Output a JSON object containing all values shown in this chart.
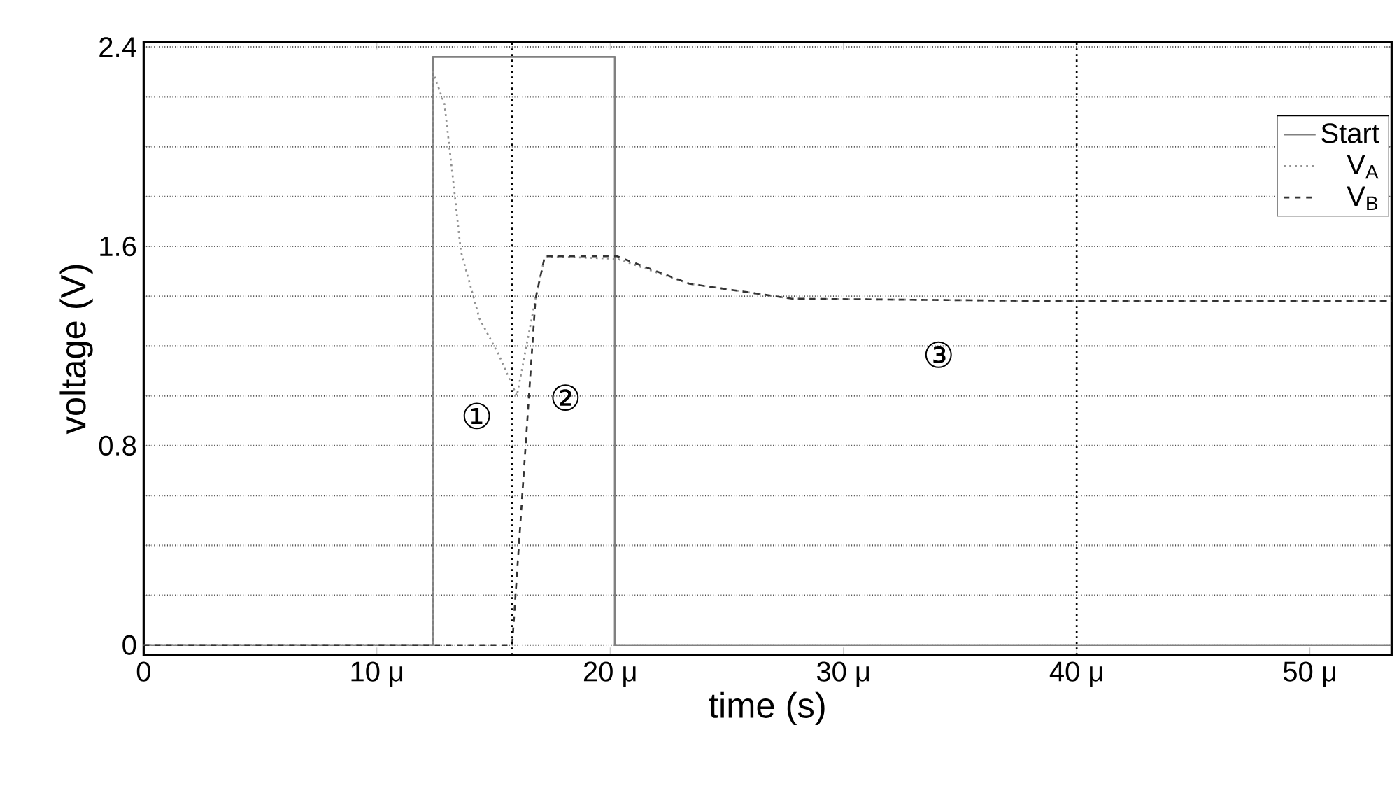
{
  "chart_data": {
    "type": "line",
    "xlabel": "time (s)",
    "ylabel": "voltage (V)",
    "xlim": [
      0,
      53.5
    ],
    "ylim": [
      -0.04,
      2.42
    ],
    "xticks": [
      0,
      {
        "value": 10,
        "label": "10 μ"
      },
      {
        "value": 20,
        "label": "20 μ"
      },
      {
        "value": 30,
        "label": "30 μ"
      },
      {
        "value": 40,
        "label": "40 μ"
      },
      {
        "value": 50,
        "label": "50 μ"
      }
    ],
    "yticks": [
      0,
      {
        "value": 0.2,
        "label": null
      },
      {
        "value": 0.4,
        "label": null
      },
      {
        "value": 0.6,
        "label": null
      },
      0.8,
      {
        "value": 1.0,
        "label": null
      },
      {
        "value": 1.2,
        "label": null
      },
      {
        "value": 1.4,
        "label": null
      },
      1.6,
      {
        "value": 1.8,
        "label": null
      },
      {
        "value": 2.0,
        "label": null
      },
      {
        "value": 2.2,
        "label": null
      },
      2.4
    ],
    "grid": "y",
    "legend": "top right",
    "series": [
      {
        "name": "Start",
        "color": "#808080",
        "line_style": "solid",
        "x": [
          0,
          12.4,
          12.4,
          20.2,
          20.2,
          53.5
        ],
        "values": [
          0,
          0,
          2.36,
          2.36,
          0,
          0
        ]
      },
      {
        "name": "V$_{A}$",
        "color": "#909090",
        "line_style": "dotted",
        "x": [
          0,
          12.4,
          12.4,
          12.9,
          13.3,
          13.6,
          14.4,
          15.2,
          16.0,
          16.8,
          17.2,
          20.3,
          23.4,
          27.8,
          40,
          53.5
        ],
        "values": [
          0,
          0,
          2.3,
          2.17,
          1.84,
          1.58,
          1.31,
          1.17,
          1.0,
          1.39,
          1.56,
          1.55,
          1.45,
          1.39,
          1.38,
          1.38
        ]
      },
      {
        "name": "V$_{B}$",
        "color": "#333333",
        "line_style": "dashed",
        "x": [
          0,
          15.8,
          16.8,
          17.2,
          20.3,
          23.4,
          27.8,
          40,
          53.5
        ],
        "values": [
          0,
          0,
          1.39,
          1.56,
          1.56,
          1.45,
          1.39,
          1.38,
          1.38
        ]
      }
    ],
    "ref_lines": [
      {
        "axis": "x",
        "value": 15.8,
        "line_style": "dotted"
      },
      {
        "axis": "x",
        "value": 40,
        "line_style": "dotted"
      }
    ],
    "annotations": [
      "①",
      "②",
      "③"
    ]
  }
}
